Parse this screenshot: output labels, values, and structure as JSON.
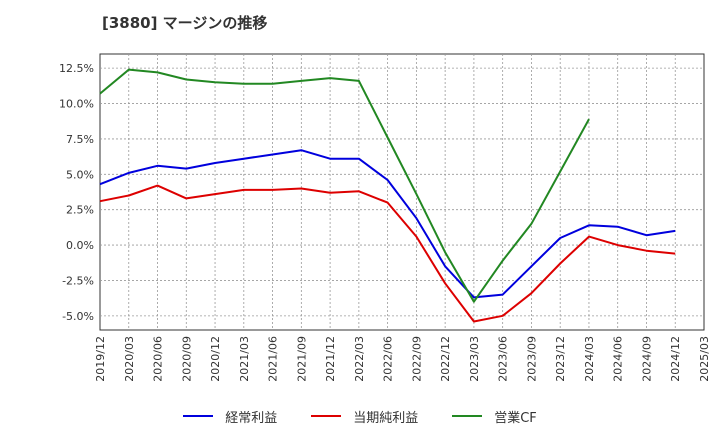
{
  "chart_data": {
    "type": "line",
    "title": "[3880]  マージンの推移",
    "xlabel": "",
    "ylabel": "",
    "ylim": [
      -6.0,
      13.5
    ],
    "yticks": [
      "12.5%",
      "10.0%",
      "7.5%",
      "5.0%",
      "2.5%",
      "0.0%",
      "-2.5%",
      "-5.0%"
    ],
    "ytick_values": [
      12.5,
      10.0,
      7.5,
      5.0,
      2.5,
      0.0,
      -2.5,
      -5.0
    ],
    "x": [
      "2019/12",
      "2020/03",
      "2020/06",
      "2020/09",
      "2020/12",
      "2021/03",
      "2021/06",
      "2021/09",
      "2021/12",
      "2022/03",
      "2022/06",
      "2022/09",
      "2022/12",
      "2023/03",
      "2023/06",
      "2023/09",
      "2023/12",
      "2024/03",
      "2024/06",
      "2024/09",
      "2024/12",
      "2025/03"
    ],
    "grid": true,
    "legend_position": "bottom",
    "series": [
      {
        "name": "経常利益",
        "color": "#0000dd",
        "values": [
          4.3,
          5.1,
          5.6,
          5.4,
          5.8,
          6.1,
          6.4,
          6.7,
          6.1,
          6.1,
          4.6,
          1.9,
          -1.5,
          -3.7,
          -3.5,
          -1.5,
          0.5,
          1.4,
          1.3,
          0.7,
          1.0,
          null
        ]
      },
      {
        "name": "当期純利益",
        "color": "#dd0000",
        "values": [
          3.1,
          3.5,
          4.2,
          3.3,
          3.6,
          3.9,
          3.9,
          4.0,
          3.7,
          3.8,
          3.0,
          0.6,
          -2.7,
          -5.4,
          -5.0,
          -3.4,
          -1.3,
          0.6,
          0.0,
          -0.4,
          -0.6,
          null
        ]
      },
      {
        "name": "営業CF",
        "color": "#228822",
        "values": [
          10.7,
          12.4,
          12.2,
          11.7,
          11.5,
          11.4,
          11.4,
          11.6,
          11.8,
          11.6,
          7.6,
          3.6,
          -0.5,
          -4.0,
          -1.1,
          1.5,
          5.2,
          8.9,
          null,
          null,
          null,
          null
        ]
      }
    ]
  }
}
